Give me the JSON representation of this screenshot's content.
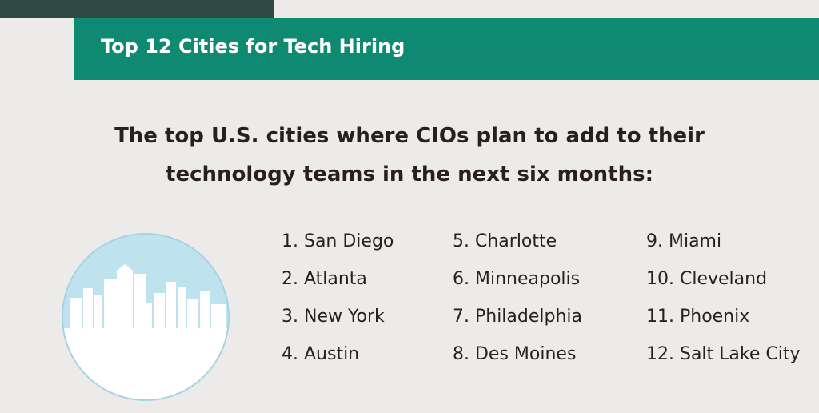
{
  "header": {
    "title": "Top 12 Cities for Tech Hiring"
  },
  "subtitle": {
    "line1": "The top U.S. cities where CIOs plan to add to their",
    "line2": "technology teams in the next six months:"
  },
  "cities": {
    "col1": [
      "1. San Diego",
      "2. Atlanta",
      "3. New York",
      "4. Austin"
    ],
    "col2": [
      "5. Charlotte",
      "6. Minneapolis",
      "7. Philadelphia",
      "8. Des Moines"
    ],
    "col3": [
      "9. Miami",
      "10. Cleveland",
      "11. Phoenix",
      "12. Salt Lake City"
    ]
  },
  "colors": {
    "banner": "#0f8a72",
    "dark_tab": "#2f4a43",
    "circle": "#bfe3ee",
    "text": "#2a1f1f"
  },
  "icons": [
    "city-skyline-icon"
  ]
}
